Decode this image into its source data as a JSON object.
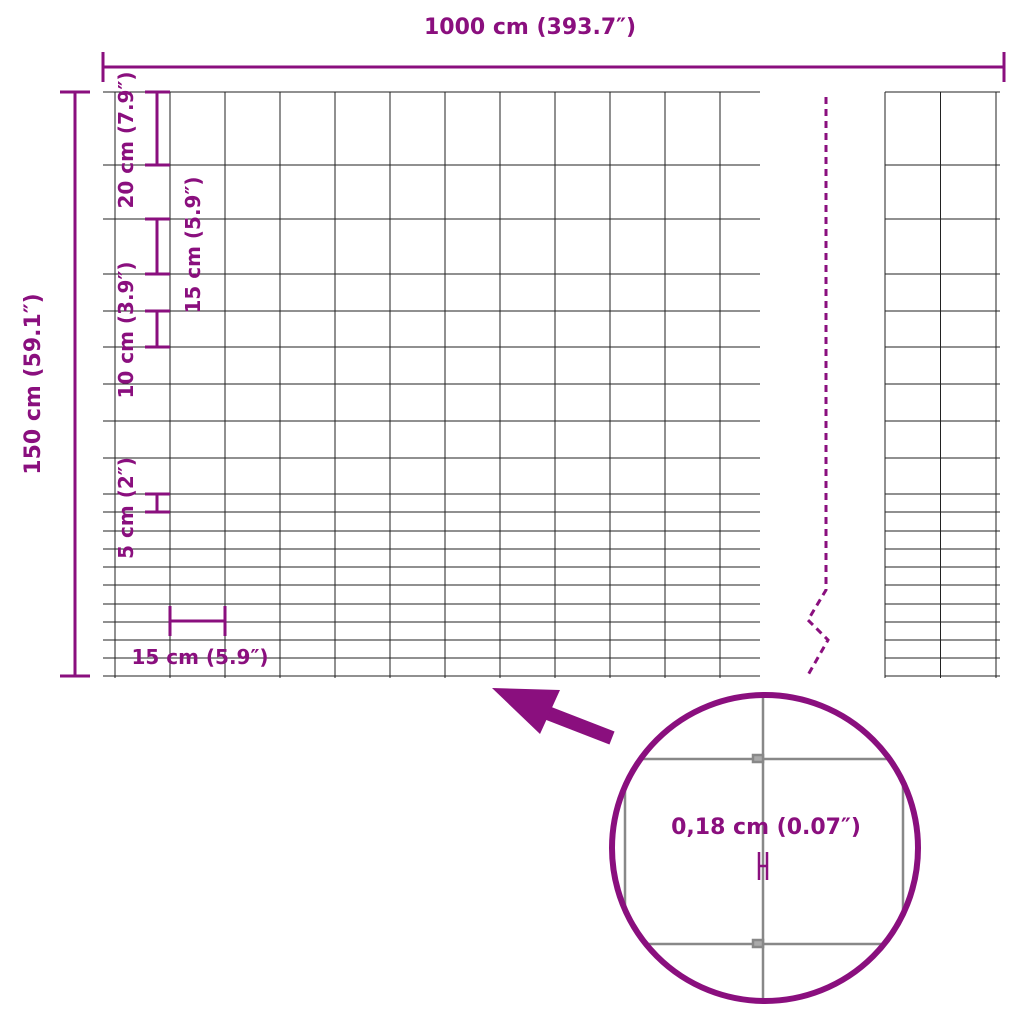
{
  "accent_color": "#8a0f7e",
  "labels": {
    "total_length": "1000 cm (393.7″)",
    "total_height": "150 cm (59.1″)",
    "top_mesh_height": "20 cm (7.9″)",
    "mid_mesh_height": "15 cm (5.9″)",
    "lower_mesh_height": "10 cm (3.9″)",
    "bottom_mesh_height": "5 cm (2″)",
    "mesh_width": "15 cm (5.9″)",
    "wire_diameter": "0,18 cm (0.07″)"
  },
  "mesh": {
    "columns_left_panel": 12,
    "columns_right_panel": 2,
    "horizontal_wires": 20
  }
}
